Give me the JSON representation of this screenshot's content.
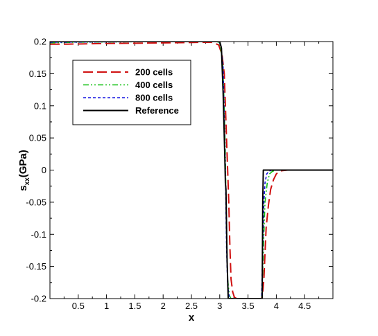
{
  "chart_data": {
    "type": "line",
    "title": "",
    "xlabel": "x",
    "ylabel": {
      "base": "s",
      "sub": "xx",
      "rest": "(GPa)"
    },
    "xlim": [
      0,
      5
    ],
    "ylim": [
      -0.2,
      0.2
    ],
    "xticks": [
      0.5,
      1,
      1.5,
      2,
      2.5,
      3,
      3.5,
      4,
      4.5
    ],
    "xtick_labels": [
      "0.5",
      "1",
      "1.5",
      "2",
      "2.5",
      "3",
      "3.5",
      "4",
      "4.5"
    ],
    "yticks": [
      0.2,
      0.15,
      0.1,
      0.05,
      0,
      -0.05,
      -0.1,
      -0.15,
      -0.2
    ],
    "ytick_labels": [
      "0.2",
      "0.15",
      "0.1",
      "0.05",
      "0",
      "-0.05",
      "-0.1",
      "-0.15",
      "-0.2"
    ],
    "legend_position": "top-left",
    "series": [
      {
        "name": "200 cells",
        "color": "#d01010",
        "dash": "long-dash",
        "x": [
          0,
          0.3,
          1.0,
          2.0,
          2.85,
          2.98,
          3.04,
          3.08,
          3.1,
          3.12,
          3.14,
          3.16,
          3.18,
          3.2,
          3.23,
          3.26,
          3.3,
          3.74,
          3.76,
          3.78,
          3.8,
          3.82,
          3.86,
          3.9,
          3.95,
          4.0,
          4.05,
          4.1,
          4.2,
          5.0
        ],
        "y": [
          0.196,
          0.196,
          0.197,
          0.198,
          0.199,
          0.195,
          0.18,
          0.15,
          0.1,
          0.05,
          0,
          -0.05,
          -0.12,
          -0.17,
          -0.19,
          -0.198,
          -0.2,
          -0.2,
          -0.19,
          -0.17,
          -0.13,
          -0.09,
          -0.055,
          -0.03,
          -0.015,
          -0.006,
          -0.002,
          -0.001,
          0,
          0
        ]
      },
      {
        "name": "400 cells",
        "color": "#10c010",
        "dash": "dash-dot-dot",
        "x": [
          0,
          0.5,
          2.0,
          2.95,
          3.0,
          3.05,
          3.08,
          3.1,
          3.12,
          3.14,
          3.17,
          3.2,
          3.25,
          3.74,
          3.76,
          3.78,
          3.8,
          3.84,
          3.88,
          3.93,
          4.0,
          5.0
        ],
        "y": [
          0.198,
          0.199,
          0.2,
          0.2,
          0.198,
          0.17,
          0.1,
          0.02,
          -0.1,
          -0.17,
          -0.195,
          -0.2,
          -0.2,
          -0.2,
          -0.16,
          -0.1,
          -0.05,
          -0.02,
          -0.006,
          -0.002,
          0,
          0
        ]
      },
      {
        "name": "800 cells",
        "color": "#1414e0",
        "dash": "short-dash",
        "x": [
          0,
          2.0,
          2.98,
          3.02,
          3.06,
          3.08,
          3.1,
          3.12,
          3.14,
          3.17,
          3.2,
          3.74,
          3.76,
          3.78,
          3.8,
          3.83,
          3.87,
          3.92,
          5.0
        ],
        "y": [
          0.199,
          0.2,
          0.2,
          0.195,
          0.16,
          0.08,
          0,
          -0.12,
          -0.18,
          -0.198,
          -0.2,
          -0.2,
          -0.12,
          -0.05,
          -0.02,
          -0.006,
          -0.002,
          0,
          0
        ]
      },
      {
        "name": "Reference",
        "color": "#000000",
        "dash": "solid",
        "x": [
          0,
          3.0,
          3.03,
          3.06,
          3.09,
          3.1,
          3.11,
          3.13,
          3.15,
          3.16,
          3.75,
          3.76,
          3.77,
          5.0
        ],
        "y": [
          0.2,
          0.2,
          0.19,
          0.12,
          0.02,
          -0.02,
          -0.03,
          -0.14,
          -0.2,
          -0.2,
          -0.2,
          -0.05,
          0,
          0
        ]
      }
    ]
  }
}
